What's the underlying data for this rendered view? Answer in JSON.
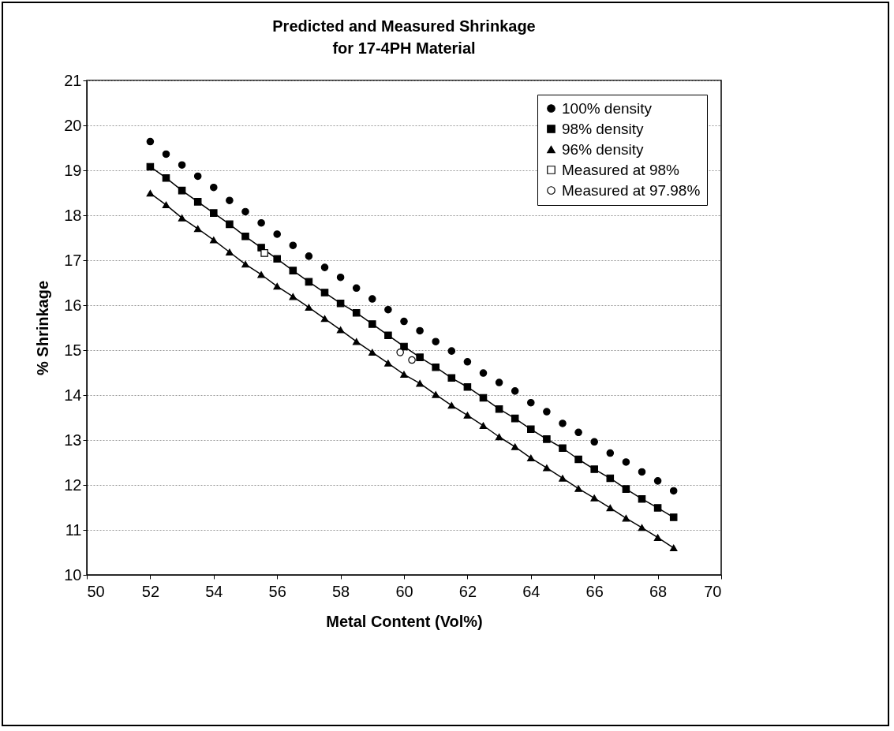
{
  "chart_data": {
    "type": "line",
    "title": "Predicted and Measured Shrinkage\nfor 17-4PH Material",
    "xlabel": "Metal Content (Vol%)",
    "ylabel": "% Shrinkage",
    "x": [
      52,
      52.5,
      53,
      53.5,
      54,
      54.5,
      55,
      55.5,
      56,
      56.5,
      57,
      57.5,
      58,
      58.5,
      59,
      59.5,
      60,
      60.5,
      61,
      61.5,
      62,
      62.5,
      63,
      63.5,
      64,
      64.5,
      65,
      65.5,
      66,
      66.5,
      67,
      67.5,
      68,
      68.5
    ],
    "series": [
      {
        "name": "100% density",
        "type": "scatter",
        "marker": "circle",
        "color": "#000000",
        "values": [
          19.64,
          19.36,
          19.12,
          18.87,
          18.62,
          18.33,
          18.08,
          17.83,
          17.58,
          17.33,
          17.09,
          16.84,
          16.62,
          16.38,
          16.14,
          15.9,
          15.64,
          15.43,
          15.19,
          14.98,
          14.74,
          14.49,
          14.28,
          14.09,
          13.83,
          13.63,
          13.37,
          13.17,
          12.96,
          12.71,
          12.51,
          12.29,
          12.09,
          11.87
        ]
      },
      {
        "name": "98% density",
        "marker": "square",
        "color": "#000000",
        "values": [
          19.08,
          18.83,
          18.55,
          18.3,
          18.05,
          17.8,
          17.53,
          17.28,
          17.03,
          16.77,
          16.52,
          16.28,
          16.04,
          15.83,
          15.58,
          15.33,
          15.08,
          14.84,
          14.62,
          14.38,
          14.18,
          13.94,
          13.69,
          13.48,
          13.24,
          13.02,
          12.82,
          12.57,
          12.35,
          12.15,
          11.91,
          11.69,
          11.49,
          11.28
        ]
      },
      {
        "name": "96% density",
        "marker": "triangle",
        "color": "#000000",
        "values": [
          18.49,
          18.23,
          17.94,
          17.7,
          17.45,
          17.18,
          16.91,
          16.68,
          16.42,
          16.19,
          15.95,
          15.7,
          15.45,
          15.19,
          14.95,
          14.71,
          14.46,
          14.26,
          14.01,
          13.77,
          13.55,
          13.32,
          13.07,
          12.85,
          12.6,
          12.38,
          12.15,
          11.92,
          11.71,
          11.49,
          11.26,
          11.05,
          10.83,
          10.6
        ]
      },
      {
        "name": "Measured at 98%",
        "type": "scatter",
        "marker": "square",
        "color": "#ffffff",
        "x": [
          55.6
        ],
        "values": [
          17.16
        ]
      },
      {
        "name": "Measured at 97.98%",
        "type": "scatter",
        "marker": "circle",
        "color": "#ffffff",
        "x": [
          59.88,
          60.25
        ],
        "values": [
          14.95,
          14.78
        ]
      }
    ],
    "xlim": [
      50,
      70
    ],
    "xticks": [
      50,
      52,
      54,
      56,
      58,
      60,
      62,
      64,
      66,
      68,
      70
    ],
    "ylim": [
      10,
      21
    ],
    "yticks": [
      10,
      11,
      12,
      13,
      14,
      15,
      16,
      17,
      18,
      19,
      20,
      21
    ],
    "grid": "y",
    "legend": "top right"
  }
}
